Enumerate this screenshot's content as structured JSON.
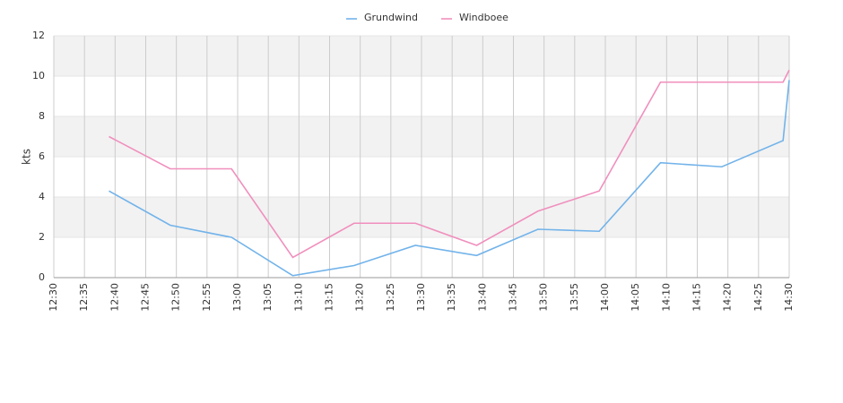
{
  "chart_data": {
    "type": "line",
    "y_label": "kts",
    "x": [
      "12:39",
      "12:49",
      "12:59",
      "13:09",
      "13:19",
      "13:29",
      "13:39",
      "13:49",
      "13:59",
      "14:09",
      "14:19",
      "14:29",
      "14:30"
    ],
    "series": [
      {
        "name": "Grundwind",
        "color": "#72b3ea",
        "values": [
          4.3,
          2.6,
          2.0,
          0.1,
          0.6,
          1.6,
          1.1,
          2.4,
          2.3,
          5.7,
          5.5,
          6.8,
          9.8
        ]
      },
      {
        "name": "Windboee",
        "color": "#f08fbd",
        "values": [
          7.0,
          5.4,
          5.4,
          1.0,
          2.7,
          2.7,
          1.6,
          3.3,
          4.3,
          9.7,
          9.7,
          9.7,
          10.3
        ]
      }
    ],
    "xlim": [
      "12:30",
      "14:30"
    ],
    "xticks": [
      "12:30",
      "12:35",
      "12:40",
      "12:45",
      "12:50",
      "12:55",
      "13:00",
      "13:05",
      "13:10",
      "13:15",
      "13:20",
      "13:25",
      "13:30",
      "13:35",
      "13:40",
      "13:45",
      "13:50",
      "13:55",
      "14:00",
      "14:05",
      "14:10",
      "14:15",
      "14:20",
      "14:25",
      "14:30"
    ],
    "ylim": [
      0,
      12
    ],
    "yticks": [
      0,
      2,
      4,
      6,
      8,
      10,
      12
    ],
    "grid": true,
    "alternate_bands": true,
    "legend": "top"
  }
}
